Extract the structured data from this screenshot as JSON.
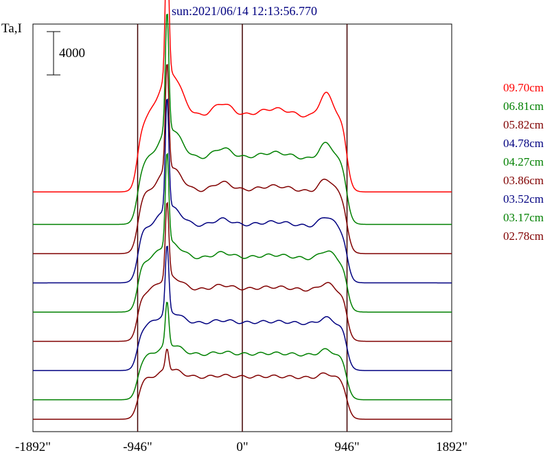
{
  "chart_data": {
    "type": "line",
    "title": "sun:2021/06/14 12:13:56.770",
    "ylabel": "Ta,I",
    "scale_bar_label": "4000",
    "scale_bar_value": 4000,
    "x_ticks": [
      {
        "value": -1892,
        "label": "-1892\""
      },
      {
        "value": -946,
        "label": "-946\""
      },
      {
        "value": 0,
        "label": "0\""
      },
      {
        "value": 946,
        "label": "946\""
      },
      {
        "value": 1892,
        "label": "1892\""
      }
    ],
    "vertical_lines": [
      -946,
      0,
      946
    ],
    "xlim": [
      -1892,
      1892
    ],
    "legend_placement": "right",
    "series": [
      {
        "name": "09.70cm",
        "color": "#ff0000",
        "baseline": 21000,
        "plateau": 7000,
        "peak": 13000,
        "limb": 4200,
        "bump": 2400
      },
      {
        "name": "06.81cm",
        "color": "#008000",
        "baseline": 18000,
        "plateau": 6100,
        "peak": 11000,
        "limb": 2900,
        "bump": 1900
      },
      {
        "name": "05.82cm",
        "color": "#800000",
        "baseline": 15300,
        "plateau": 5800,
        "peak": 10000,
        "limb": 2300,
        "bump": 1600
      },
      {
        "name": "04.78cm",
        "color": "#000080",
        "baseline": 12600,
        "plateau": 5300,
        "peak": 10500,
        "limb": 1800,
        "bump": 1200
      },
      {
        "name": "04.27cm",
        "color": "#008000",
        "baseline": 9900,
        "plateau": 5000,
        "peak": 8600,
        "limb": 1500,
        "bump": 1000
      },
      {
        "name": "03.86cm",
        "color": "#800000",
        "baseline": 7200,
        "plateau": 4800,
        "peak": 7000,
        "limb": 1300,
        "bump": 800
      },
      {
        "name": "03.52cm",
        "color": "#000080",
        "baseline": 4500,
        "plateau": 4400,
        "peak": 6200,
        "limb": 1100,
        "bump": 500
      },
      {
        "name": "03.17cm",
        "color": "#008000",
        "baseline": 1800,
        "plateau": 4200,
        "peak": 4000,
        "limb": 1000,
        "bump": 400
      },
      {
        "name": "02.78cm",
        "color": "#800000",
        "baseline": 0,
        "plateau": 3900,
        "peak": 2000,
        "limb": 800,
        "bump": 300
      }
    ]
  }
}
